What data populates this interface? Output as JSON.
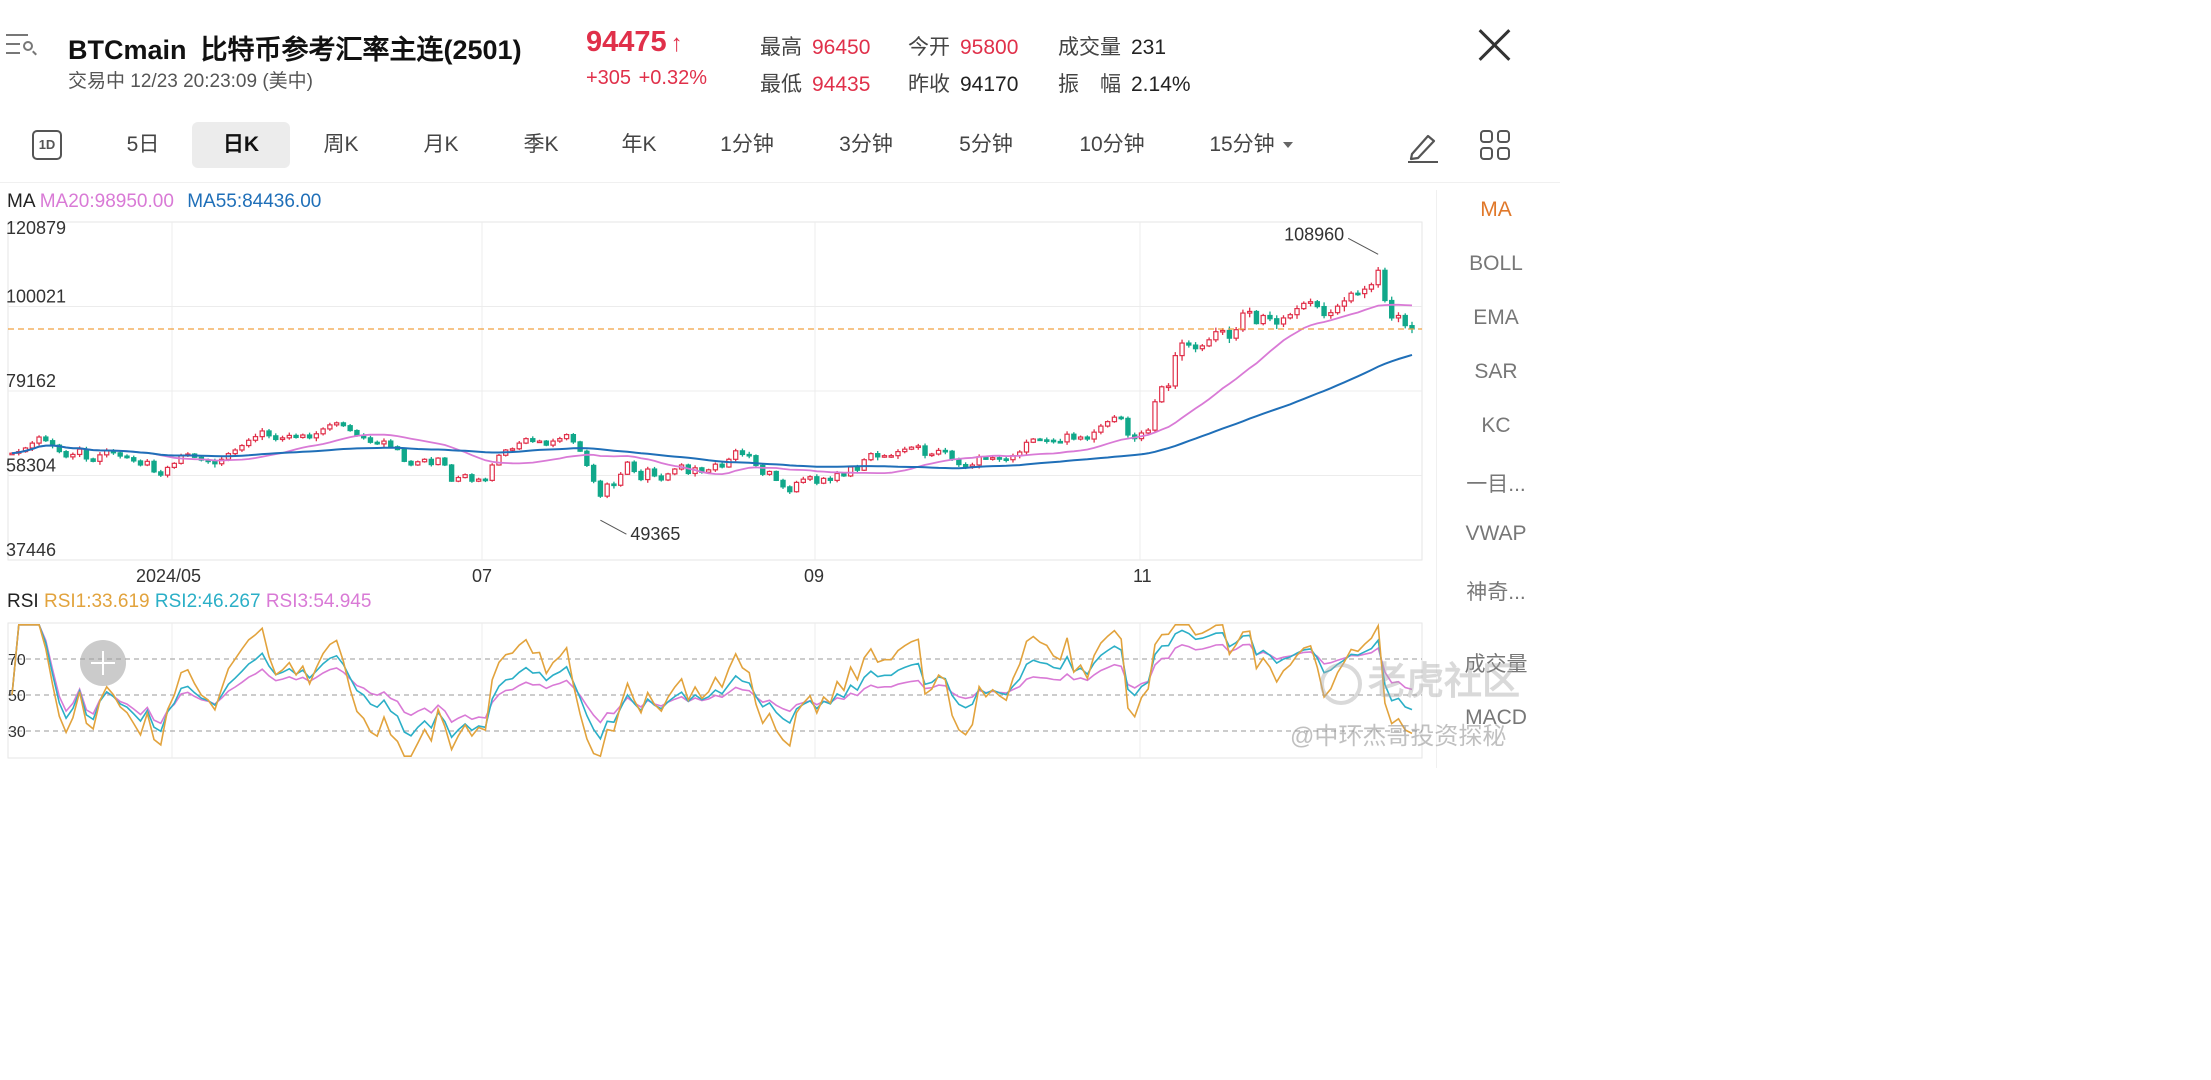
{
  "header": {
    "symbol": "BTCmain",
    "name": "比特币参考汇率主连(2501)",
    "status": "交易中 12/23 20:23:09 (美中)",
    "price": "94475",
    "price_arrow": "↑",
    "change": "+305 +0.32%",
    "stats": [
      {
        "label": "最高",
        "value": "96450",
        "color": "red"
      },
      {
        "label": "今开",
        "value": "95800",
        "color": "red"
      },
      {
        "label": "成交量",
        "value": "231",
        "color": "dark"
      },
      {
        "label": "最低",
        "value": "94435",
        "color": "red"
      },
      {
        "label": "昨收",
        "value": "94170",
        "color": "dark"
      },
      {
        "label": "振　幅",
        "value": "2.14%",
        "color": "dark"
      }
    ],
    "icons": {
      "menu": "menu-search-icon",
      "close": "close-icon"
    }
  },
  "tabs": {
    "oneday_icon": "1D",
    "items": [
      "5日",
      "日K",
      "周K",
      "月K",
      "季K",
      "年K",
      "1分钟",
      "3分钟",
      "5分钟",
      "10分钟",
      "15分钟"
    ],
    "active": "日K",
    "tools": [
      "pen-icon",
      "grid-icon"
    ]
  },
  "ma_legend": {
    "label": "MA",
    "ma20": "MA20:98950.00",
    "ma55": "MA55:84436.00"
  },
  "rsi_legend": {
    "label": "RSI",
    "rsi1": "RSI1:33.619",
    "rsi2": "RSI2:46.267",
    "rsi3": "RSI3:54.945"
  },
  "indicators": [
    "MA",
    "BOLL",
    "EMA",
    "SAR",
    "KC",
    "一目...",
    "VWAP",
    "神奇...",
    "成交量",
    "MACD"
  ],
  "active_indicator": "MA",
  "watermark": "老虎社区",
  "credit": "@中环杰哥投资探秘",
  "colors": {
    "up": "#e0304a",
    "down": "#11a88a",
    "ma20": "#d97ad6",
    "ma55": "#1f6fb8",
    "rsi1": "#e2a33d",
    "rsi2": "#2bafc7",
    "rsi3": "#d97ad6",
    "ref_line": "#f0a040",
    "active_indicator": "#e0782a"
  },
  "chart_data": [
    {
      "type": "candlestick",
      "title": "",
      "y_ticks": [
        "120879",
        "100021",
        "79162",
        "58304",
        "37446"
      ],
      "ylim": [
        37446,
        120879
      ],
      "x_ticks": [
        "2024/05",
        "07",
        "09",
        "11"
      ],
      "last_price_line": 94475,
      "annotations": [
        {
          "label": "108960",
          "kind": "high"
        },
        {
          "label": "49365",
          "kind": "low"
        }
      ],
      "series": [
        {
          "name": "MA20",
          "latest": 98950.0
        },
        {
          "name": "MA55",
          "latest": 84436.0
        }
      ],
      "closes": [
        63800,
        64200,
        65100,
        66300,
        67800,
        66900,
        65800,
        64200,
        62900,
        63500,
        64800,
        62400,
        61800,
        63400,
        64400,
        63900,
        63100,
        62700,
        61900,
        60900,
        61800,
        59200,
        58400,
        60300,
        61300,
        63300,
        63600,
        62800,
        62100,
        61800,
        61200,
        62300,
        63700,
        64600,
        65700,
        67000,
        67900,
        69300,
        68100,
        67200,
        67600,
        68200,
        67700,
        68300,
        67600,
        68600,
        69800,
        70800,
        71300,
        70600,
        69400,
        68100,
        67600,
        66500,
        66100,
        66800,
        65400,
        64700,
        61800,
        60900,
        61700,
        62300,
        61000,
        62600,
        60900,
        56900,
        57800,
        58500,
        56900,
        57400,
        57100,
        60900,
        63300,
        64600,
        64900,
        66300,
        67400,
        66700,
        66800,
        65800,
        66800,
        67400,
        68400,
        66600,
        64300,
        60800,
        56900,
        53200,
        56200,
        55900,
        58600,
        61600,
        59300,
        57300,
        59900,
        58200,
        57200,
        58700,
        59900,
        60900,
        58800,
        60200,
        59100,
        59700,
        61100,
        60400,
        62300,
        64400,
        63500,
        63200,
        60800,
        58600,
        59300,
        57100,
        55500,
        54300,
        56600,
        57400,
        58000,
        56400,
        57600,
        57100,
        58800,
        58200,
        60400,
        59600,
        62200,
        63700,
        62900,
        63200,
        63200,
        64200,
        64800,
        65300,
        65600,
        63300,
        63600,
        64500,
        64300,
        62300,
        61000,
        60500,
        60900,
        62900,
        62300,
        62700,
        62400,
        62200,
        63200,
        64100,
        66500,
        67300,
        67100,
        67000,
        66700,
        66600,
        68500,
        67300,
        67800,
        67300,
        69000,
        70500,
        71600,
        72700,
        72400,
        68300,
        67400,
        68800,
        69500,
        76500,
        80200,
        80400,
        87900,
        91000,
        90500,
        89600,
        90300,
        91800,
        93800,
        94100,
        92200,
        94300,
        98400,
        98800,
        95800,
        97800,
        97000,
        95700,
        97200,
        98000,
        99500,
        100800,
        101200,
        100000,
        97800,
        98500,
        100100,
        101400,
        103300,
        103200,
        104300,
        105400,
        108960,
        101500,
        97200,
        97800,
        95300,
        94475
      ]
    },
    {
      "type": "line",
      "title": "",
      "y_ticks": [
        "70",
        "50",
        "30"
      ],
      "ylim": [
        15,
        90
      ],
      "series": [
        {
          "name": "RSI1",
          "latest": 33.619
        },
        {
          "name": "RSI2",
          "latest": 46.267
        },
        {
          "name": "RSI3",
          "latest": 54.945
        }
      ]
    }
  ]
}
